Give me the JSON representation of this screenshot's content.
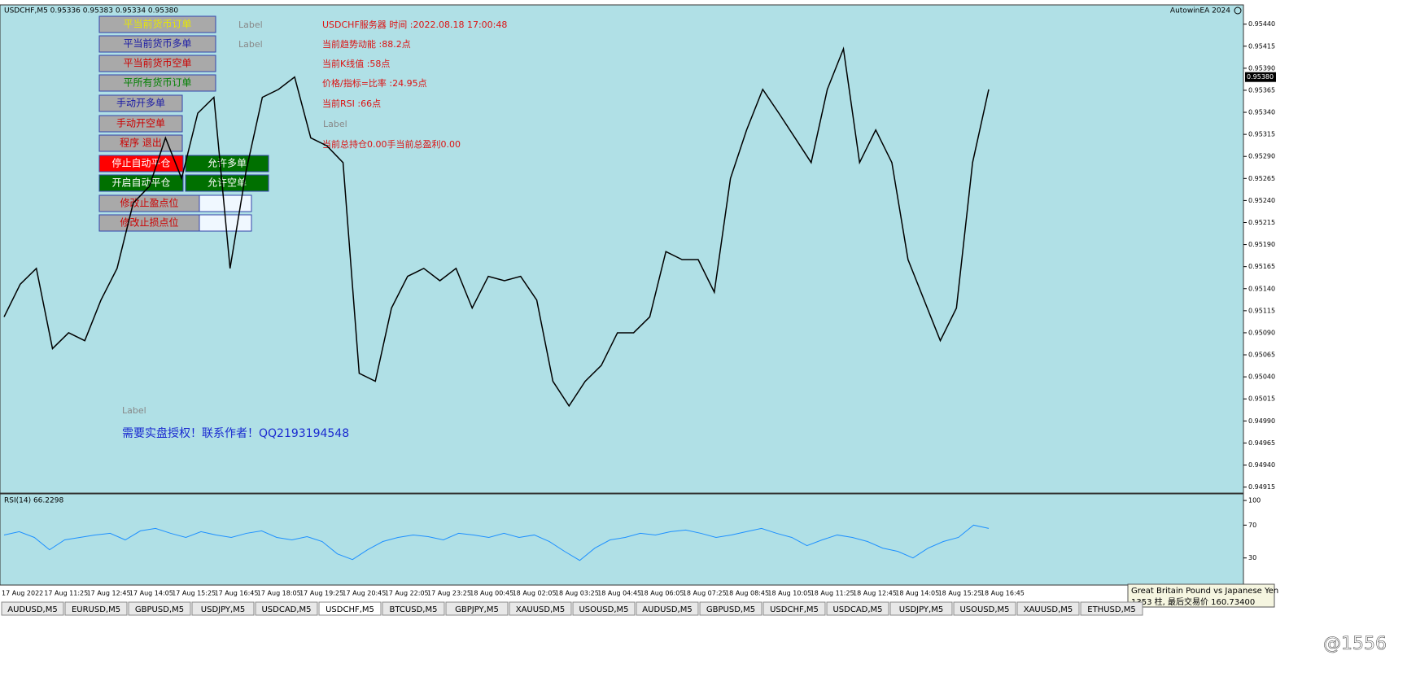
{
  "header": {
    "symbol_info": "USDCHF,M5  0.95336 0.95383 0.95334 0.95380",
    "ea_name": "AutowinEA 2024"
  },
  "buttons": [
    {
      "label": "平当前货币订单",
      "color": "#e8e800",
      "bg": "#a9a9a9"
    },
    {
      "label": "平当前货币多单",
      "color": "#1a1aa6",
      "bg": "#a9a9a9"
    },
    {
      "label": "平当前货币空单",
      "color": "#cc0000",
      "bg": "#a9a9a9"
    },
    {
      "label": "平所有货币订单",
      "color": "#008000",
      "bg": "#a9a9a9"
    },
    {
      "label": "手动开多单",
      "color": "#1a1aa6",
      "bg": "#a9a9a9"
    },
    {
      "label": "手动开空单",
      "color": "#cc0000",
      "bg": "#a9a9a9"
    },
    {
      "label": "程序 退出",
      "color": "#cc0000",
      "bg": "#a9a9a9"
    },
    {
      "label": "停止自动平仓",
      "color": "#ffffff",
      "bg": "#ff0000"
    },
    {
      "label": "允许多单",
      "color": "#ffffff",
      "bg": "#007000"
    },
    {
      "label": "开启自动平仓",
      "color": "#ffffff",
      "bg": "#007000"
    },
    {
      "label": "允许空单",
      "color": "#ffffff",
      "bg": "#007000"
    },
    {
      "label": "修改止盈点位",
      "color": "#cc0000",
      "bg": "#a9a9a9"
    },
    {
      "label": "修改止损点位",
      "color": "#cc0000",
      "bg": "#a9a9a9"
    }
  ],
  "labels": [
    "Label",
    "Label",
    "Label",
    "Label"
  ],
  "info": [
    "USDCHF服务器  时间 :2022.08.18 17:00:48",
    "当前趋势动能 :88.2点",
    "当前K线值 :58点",
    "价格/指标=比率 :24.95点",
    "当前RSI :66点",
    "当前总持仓0.00手当前总盈利0.00"
  ],
  "notice": "需要实盘授权！联系作者！QQ2193194548",
  "chart_data": [
    {
      "type": "line",
      "color": "#000000",
      "values": [
        0.95108,
        0.95145,
        0.95163,
        0.95072,
        0.9509,
        0.95081,
        0.95127,
        0.95163,
        0.95237,
        0.95256,
        0.95311,
        0.95265,
        0.95339,
        0.95357,
        0.95163,
        0.95274,
        0.95357,
        0.95366,
        0.9538,
        0.95311,
        0.95302,
        0.95283,
        0.95044,
        0.95035,
        0.95118,
        0.95154,
        0.95163,
        0.95149,
        0.95163,
        0.95118,
        0.95154,
        0.95149,
        0.95154,
        0.95127,
        0.95035,
        0.95007,
        0.95035,
        0.95053,
        0.9509,
        0.9509,
        0.95108,
        0.95182,
        0.95173,
        0.95173,
        0.95136,
        0.95265,
        0.9532,
        0.95366,
        0.95339,
        0.95311,
        0.95283,
        0.95366,
        0.95412,
        0.95283,
        0.9532,
        0.95283,
        0.95173,
        0.95127,
        0.95081,
        0.95118,
        0.95283,
        0.95366
      ],
      "ylim": [
        0.9491,
        0.9546
      ],
      "yticks": [
        {
          "value": 0.9544,
          "label": "0.95440"
        },
        0.95415,
        {
          "value": 0.9539,
          "label": "0.95390"
        },
        0.95365,
        {
          "value": 0.9534,
          "label": "0.95340"
        },
        0.95315,
        {
          "value": 0.9529,
          "label": "0.95290"
        },
        0.95265,
        {
          "value": 0.9524,
          "label": "0.95240"
        },
        0.95215,
        {
          "value": 0.9519,
          "label": "0.95190"
        },
        0.95165,
        {
          "value": 0.9514,
          "label": "0.95140"
        },
        0.95115,
        {
          "value": 0.9509,
          "label": "0.95090"
        },
        0.95065,
        {
          "value": 0.9504,
          "label": "0.95040"
        },
        0.95015,
        {
          "value": 0.9499,
          "label": "0.94990"
        },
        0.94965,
        {
          "value": 0.9494,
          "label": "0.94940"
        },
        0.94915
      ],
      "current_price": {
        "value": 0.9538,
        "label": "0.95380"
      }
    },
    {
      "type": "line",
      "title": "RSI(14) 66.2298",
      "color": "#1e90ff",
      "values": [
        58,
        62,
        55,
        40,
        52,
        55,
        58,
        60,
        52,
        63,
        66,
        60,
        55,
        62,
        58,
        55,
        60,
        63,
        55,
        52,
        56,
        50,
        35,
        28,
        40,
        50,
        55,
        58,
        56,
        52,
        60,
        58,
        55,
        60,
        55,
        58,
        50,
        38,
        27,
        42,
        52,
        55,
        60,
        58,
        62,
        64,
        60,
        55,
        58,
        62,
        66,
        60,
        55,
        45,
        52,
        58,
        55,
        50,
        42,
        38,
        30,
        42,
        50,
        55,
        70,
        66
      ],
      "ylim": [
        -2,
        107
      ],
      "yticks": [
        30,
        70,
        100
      ]
    }
  ],
  "time_labels": [
    "17 Aug 2022",
    "17 Aug 11:25",
    "17 Aug 12:45",
    "17 Aug 14:05",
    "17 Aug 15:25",
    "17 Aug 16:45",
    "17 Aug 18:05",
    "17 Aug 19:25",
    "17 Aug 20:45",
    "17 Aug 22:05",
    "17 Aug 23:25",
    "18 Aug 00:45",
    "18 Aug 02:05",
    "18 Aug 03:25",
    "18 Aug 04:45",
    "18 Aug 06:05",
    "18 Aug 07:25",
    "18 Aug 08:45",
    "18 Aug 10:05",
    "18 Aug 11:25",
    "18 Aug 12:45",
    "18 Aug 14:05",
    "18 Aug 15:25",
    "18 Aug 16:45"
  ],
  "tabs": {
    "items": [
      "AUDUSD,M5",
      "EURUSD,M5",
      "GBPUSD,M5",
      "USDJPY,M5",
      "USDCAD,M5",
      "USDCHF,M5",
      "BTCUSD,M5",
      "GBPJPY,M5",
      "XAUUSD,M5",
      "USOUSD,M5",
      "AUDUSD,M5",
      "GBPUSD,M5",
      "USDCHF,M5",
      "USDCAD,M5",
      "USDJPY,M5",
      "USOUSD,M5",
      "XAUUSD,M5",
      "ETHUSD,M5"
    ],
    "active": 5
  },
  "tooltip": [
    "Great Britain Pound vs Japanese Yen",
    "1353 柱, 最后交易价 160.73400"
  ],
  "watermark": "@1556"
}
